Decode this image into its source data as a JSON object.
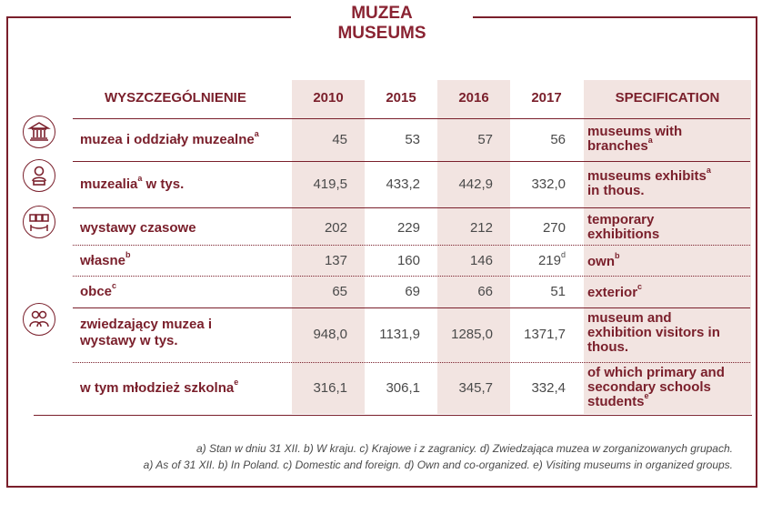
{
  "title": {
    "pl": "MUZEA",
    "en": "MUSEUMS"
  },
  "header": {
    "left": "WYSZCZEGÓLNIENIE",
    "right": "SPECIFICATION",
    "years": [
      "2010",
      "2015",
      "2016",
      "2017"
    ]
  },
  "rows": [
    {
      "label": "muzea i oddziały muzealne",
      "label_sup": "a",
      "values": [
        "45",
        "53",
        "57",
        "56"
      ],
      "value_sups": [
        "",
        "",
        "",
        ""
      ],
      "en": "museums with branches",
      "en_sup": "a",
      "icon": "museum-building-icon"
    },
    {
      "label": "muzealia",
      "label_sup": "a",
      "label_suffix": " w tys.",
      "values": [
        "419,5",
        "433,2",
        "442,9",
        "332,0"
      ],
      "value_sups": [
        "",
        "",
        "",
        ""
      ],
      "en": "museums exhibits",
      "en_sup": "a",
      "en_suffix": "in thous.",
      "icon": "bust-exhibit-icon"
    },
    {
      "label": "wystawy czasowe",
      "label_sup": "",
      "values": [
        "202",
        "229",
        "212",
        "270"
      ],
      "value_sups": [
        "",
        "",
        "",
        ""
      ],
      "en": "temporary exhibitions",
      "en_sup": "",
      "icon": "exhibition-frames-icon"
    },
    {
      "label": "własne",
      "label_sup": "b",
      "values": [
        "137",
        "160",
        "146",
        "219"
      ],
      "value_sups": [
        "",
        "",
        "",
        "d"
      ],
      "en": "own",
      "en_sup": "b"
    },
    {
      "label": "obce",
      "label_sup": "c",
      "values": [
        "65",
        "69",
        "66",
        "51"
      ],
      "value_sups": [
        "",
        "",
        "",
        ""
      ],
      "en": "exterior",
      "en_sup": "c"
    },
    {
      "label": "zwiedzający muzea i wystawy w tys.",
      "label_sup": "",
      "values": [
        "948,0",
        "1131,9",
        "1285,0",
        "1371,7"
      ],
      "value_sups": [
        "",
        "",
        "",
        ""
      ],
      "en": "museum and exhibition visitors in thous.",
      "en_sup": "",
      "icon": "visitors-icon"
    },
    {
      "label": "w tym młodzież szkolna",
      "label_sup": "e",
      "values": [
        "316,1",
        "306,1",
        "345,7",
        "332,4"
      ],
      "value_sups": [
        "",
        "",
        "",
        ""
      ],
      "en": "of which primary and secondary schools students",
      "en_sup": "e"
    }
  ],
  "footnotes": [
    "a) Stan w dniu 31 XII. b) W kraju. c) Krajowe i z zagranicy. d) Zwiedzająca muzea w zorganizowanych grupach.",
    "a) As of 31 XII. b) In Poland. c) Domestic and foreign. d) Own and co-organized. e) Visiting museums in organized groups."
  ],
  "colors": {
    "accent": "#7a1f2b",
    "shade": "#f2e4e1"
  }
}
